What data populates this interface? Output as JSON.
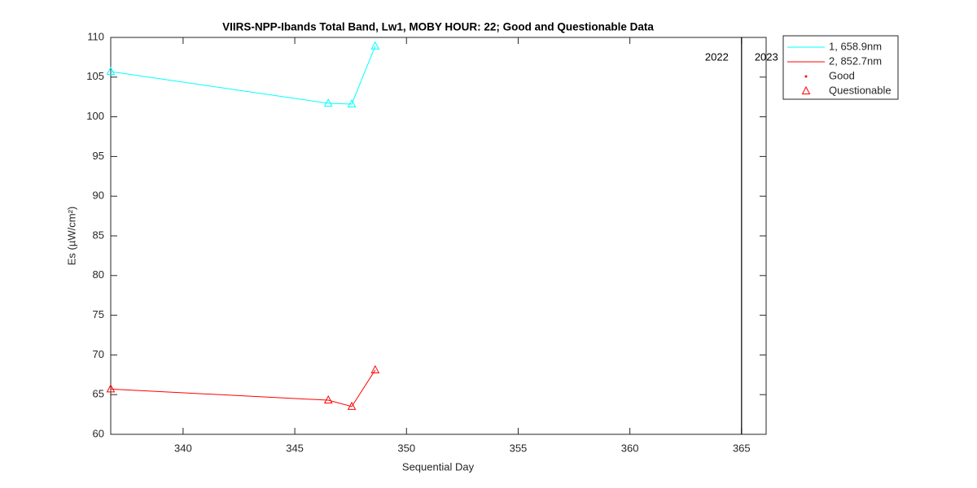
{
  "chart_data": {
    "type": "line",
    "title": "VIIRS-NPP-Ibands Total Band,  Lw1, MOBY HOUR: 22;  Good and Questionable Data",
    "x_label": "Sequential Day",
    "y_label": "Es (µW/cm²)",
    "x": [
      336.76,
      346.5,
      347.55,
      348.6
    ],
    "series": [
      {
        "name": "1, 658.9nm",
        "color": "#00ffff",
        "values": [
          105.7,
          101.7,
          101.6,
          108.9
        ]
      },
      {
        "name": "2, 852.7nm",
        "color": "#ff0000",
        "values": [
          65.7,
          64.3,
          63.5,
          68.1
        ]
      }
    ],
    "marker_legend": [
      {
        "name": "Good",
        "marker": "dot",
        "color": "#ff0000"
      },
      {
        "name": "Questionable",
        "marker": "triangle",
        "color": "#ff0000"
      }
    ],
    "year_boundary": 365,
    "year_labels": [
      "2022",
      "2023"
    ],
    "xlim": [
      336.76,
      366.1
    ],
    "ylim": [
      60,
      110
    ],
    "xticks": [
      340,
      345,
      350,
      355,
      360,
      365
    ],
    "yticks": [
      60,
      65,
      70,
      75,
      80,
      85,
      90,
      95,
      100,
      105,
      110
    ],
    "grid": false,
    "legend_position": "outside-right"
  }
}
